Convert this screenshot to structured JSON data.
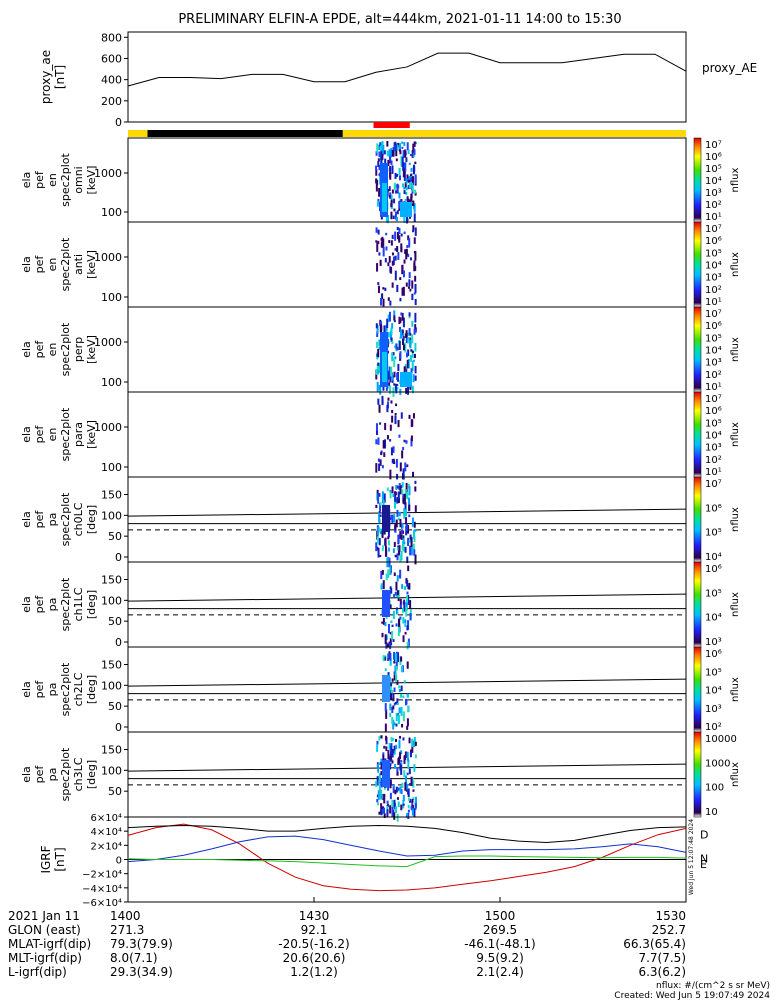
{
  "title": "PRELIMINARY ELFIN-A EPDE, alt=444km, 2021-01-11 14:00 to 15:30",
  "chart_data": [
    {
      "type": "line",
      "id": "proxy_ae",
      "ylabel": [
        "proxy_ae",
        "[nT]"
      ],
      "legend": "proxy_AE",
      "ylim": [
        0,
        850
      ],
      "yticks": [
        "800",
        "600",
        "400",
        "200",
        "0"
      ],
      "x": [
        "14:00",
        "14:05",
        "14:10",
        "14:15",
        "14:20",
        "14:25",
        "14:30",
        "14:35",
        "14:40",
        "14:45",
        "14:50",
        "14:55",
        "15:00",
        "15:05",
        "15:10",
        "15:15",
        "15:20",
        "15:25",
        "15:30"
      ],
      "values": [
        340,
        420,
        420,
        410,
        450,
        450,
        380,
        380,
        470,
        520,
        650,
        650,
        560,
        560,
        560,
        600,
        640,
        640,
        480
      ]
    },
    {
      "type": "bar",
      "id": "status-bar",
      "segments": [
        {
          "from": 0,
          "to": 0.035,
          "color": "#FFD800"
        },
        {
          "from": 0.035,
          "to": 0.385,
          "color": "#000000"
        },
        {
          "from": 0.385,
          "to": 1.0,
          "color": "#FFD800"
        }
      ],
      "marker": {
        "from": 0.44,
        "to": 0.505,
        "color": "#FF0000"
      }
    },
    {
      "type": "heatmap",
      "id": "spec-omni",
      "ylabel": [
        "ela",
        "pef",
        "en",
        "spec2plot",
        "omni",
        "[keV]"
      ],
      "yticks": [
        "1000",
        "100"
      ],
      "cbar_ticks": [
        "10⁷",
        "10⁶",
        "10⁵",
        "10⁴",
        "10³",
        "10²",
        "10¹"
      ],
      "cbar_label": "nflux"
    },
    {
      "type": "heatmap",
      "id": "spec-anti",
      "ylabel": [
        "ela",
        "pef",
        "en",
        "spec2plot",
        "anti",
        "[keV]"
      ],
      "yticks": [
        "1000",
        "100"
      ],
      "cbar_ticks": [
        "10⁷",
        "10⁶",
        "10⁵",
        "10⁴",
        "10³",
        "10²",
        "10¹"
      ],
      "cbar_label": "nflux"
    },
    {
      "type": "heatmap",
      "id": "spec-perp",
      "ylabel": [
        "ela",
        "pef",
        "en",
        "spec2plot",
        "perp",
        "[keV]"
      ],
      "yticks": [
        "1000",
        "100"
      ],
      "cbar_ticks": [
        "10⁷",
        "10⁶",
        "10⁵",
        "10⁴",
        "10³",
        "10²",
        "10¹"
      ],
      "cbar_label": "nflux"
    },
    {
      "type": "heatmap",
      "id": "spec-para",
      "ylabel": [
        "ela",
        "pef",
        "en",
        "spec2plot",
        "para",
        "[keV]"
      ],
      "yticks": [
        "1000",
        "100"
      ],
      "cbar_ticks": [
        "10⁷",
        "10⁶",
        "10⁵",
        "10⁴",
        "10³",
        "10²",
        "10¹"
      ],
      "cbar_label": "nflux"
    },
    {
      "type": "heatmap",
      "id": "pa-ch0",
      "ylabel": [
        "ela",
        "pef",
        "pa",
        "spec2plot",
        "ch0LC",
        "[deg]"
      ],
      "yticks": [
        "150",
        "100",
        "50",
        "0"
      ],
      "cbar_ticks": [
        "10⁷",
        "10⁶",
        "10⁵",
        "10⁴"
      ],
      "cbar_label": "nflux"
    },
    {
      "type": "heatmap",
      "id": "pa-ch1",
      "ylabel": [
        "ela",
        "pef",
        "pa",
        "spec2plot",
        "ch1LC",
        "[deg]"
      ],
      "yticks": [
        "150",
        "100",
        "50",
        "0"
      ],
      "cbar_ticks": [
        "10⁶",
        "10⁵",
        "10⁴",
        "10³"
      ],
      "cbar_label": "nflux"
    },
    {
      "type": "heatmap",
      "id": "pa-ch2",
      "ylabel": [
        "ela",
        "pef",
        "pa",
        "spec2plot",
        "ch2LC",
        "[deg]"
      ],
      "yticks": [
        "150",
        "100",
        "50",
        "0"
      ],
      "cbar_ticks": [
        "10⁶",
        "10⁵",
        "10⁴",
        "10³",
        "10²"
      ],
      "cbar_label": "nflux"
    },
    {
      "type": "heatmap",
      "id": "pa-ch3",
      "ylabel": [
        "ela",
        "pef",
        "pa",
        "spec2plot",
        "ch3LC",
        "[deg]"
      ],
      "yticks": [
        "150",
        "100",
        "50"
      ],
      "cbar_ticks": [
        "10000",
        "1000",
        "100",
        "10"
      ],
      "cbar_label": "nflux"
    },
    {
      "type": "line",
      "id": "igrf",
      "ylabel": [
        "IGRF",
        "[nT]"
      ],
      "ylim": [
        -60000,
        60000
      ],
      "yticks": [
        "6×10⁴",
        "4×10⁴",
        "2×10⁴",
        "0",
        "−2×10⁴",
        "−4×10⁴",
        "−6×10⁴"
      ],
      "x": [
        0,
        0.05,
        0.1,
        0.15,
        0.2,
        0.25,
        0.3,
        0.35,
        0.4,
        0.45,
        0.5,
        0.55,
        0.6,
        0.65,
        0.7,
        0.75,
        0.8,
        0.85,
        0.9,
        0.95,
        1.0
      ],
      "series": [
        {
          "name": "D",
          "color": "#D00000",
          "values": [
            34000,
            45000,
            50000,
            42000,
            22000,
            -5000,
            -25000,
            -37000,
            -42000,
            -44000,
            -43000,
            -40000,
            -35000,
            -30000,
            -24000,
            -18000,
            -10000,
            3000,
            20000,
            35000,
            44000
          ]
        },
        {
          "name": "N",
          "color": "#1030D0",
          "values": [
            -3000,
            0,
            6000,
            15000,
            25000,
            32000,
            33000,
            28000,
            20000,
            12000,
            5000,
            6000,
            12000,
            14000,
            14000,
            14000,
            15000,
            18000,
            22000,
            18000,
            10000
          ]
        },
        {
          "name": "E",
          "color": "#20C020",
          "values": [
            1000,
            0,
            0,
            0,
            -1000,
            -2000,
            -3000,
            -5000,
            -7000,
            -9000,
            -10000,
            4000,
            5000,
            5000,
            4000,
            3500,
            3000,
            2500,
            3000,
            3000,
            2000
          ]
        },
        {
          "name": "",
          "color": "#000000",
          "values": [
            45000,
            47000,
            48000,
            47000,
            44000,
            40000,
            40000,
            44000,
            47000,
            48000,
            47000,
            44000,
            38000,
            30000,
            26000,
            24000,
            27000,
            34000,
            41000,
            45000,
            46000
          ]
        }
      ],
      "side_text": "Wed Jun  5 12:07:48 2024"
    }
  ],
  "footer": {
    "rows": [
      {
        "label": "2021 Jan 11",
        "values": [
          "1400",
          "1430",
          "1500",
          "1530"
        ]
      },
      {
        "label": "GLON (east)",
        "values": [
          "271.3",
          "92.1",
          "269.5",
          "252.7"
        ]
      },
      {
        "label": "MLAT-igrf(dip)",
        "values": [
          "79.3(79.9)",
          "-20.5(-16.2)",
          "-46.1(-48.1)",
          "66.3(65.4)"
        ]
      },
      {
        "label": "MLT-igrf(dip)",
        "values": [
          "8.0(7.1)",
          "20.6(20.6)",
          "9.5(9.2)",
          "7.7(7.5)"
        ]
      },
      {
        "label": "L-igrf(dip)",
        "values": [
          "29.3(34.9)",
          "1.2(1.2)",
          "2.1(2.4)",
          "6.3(6.2)"
        ]
      }
    ],
    "units_note": "nflux: #/(cm^2 s sr MeV)",
    "created": "Created: Wed Jun  5 19:07:49 2024"
  },
  "colors": {
    "accent": "#FFD800",
    "marker": "#FF0000"
  }
}
